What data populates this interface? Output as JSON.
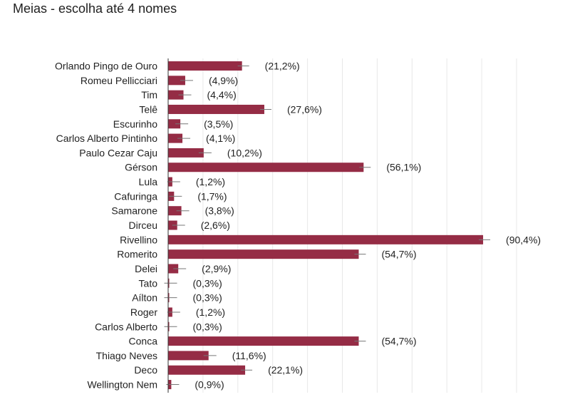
{
  "chart_data": {
    "type": "bar",
    "orientation": "horizontal",
    "title": "Meias - escolha até 4 nomes",
    "categories": [
      "Orlando Pingo de Ouro",
      "Romeu Pellicciari",
      "Tim",
      "Telê",
      "Escurinho",
      "Carlos Alberto Pintinho",
      "Paulo Cezar Caju",
      "Gérson",
      "Lula",
      "Cafuringa",
      "Samarone",
      "Dirceu",
      "Rivellino",
      "Romerito",
      "Delei",
      "Tato",
      "Aílton",
      "Roger",
      "Carlos Alberto",
      "Conca",
      "Thiago Neves",
      "Deco",
      "Wellington Nem"
    ],
    "values": [
      21.2,
      4.9,
      4.4,
      27.6,
      3.5,
      4.1,
      10.2,
      56.1,
      1.2,
      1.7,
      3.8,
      2.6,
      90.4,
      54.7,
      2.9,
      0.3,
      0.3,
      1.2,
      0.3,
      54.7,
      11.6,
      22.1,
      0.9
    ],
    "value_labels": [
      "(21,2%)",
      "(4,9%)",
      "(4,4%)",
      "(27,6%)",
      "(3,5%)",
      "(4,1%)",
      "(10,2%)",
      "(56,1%)",
      "(1,2%)",
      "(1,7%)",
      "(3,8%)",
      "(2,6%)",
      "(90,4%)",
      "(54,7%)",
      "(2,9%)",
      "(0,3%)",
      "(0,3%)",
      "(1,2%)",
      "(0,3%)",
      "(54,7%)",
      "(11,6%)",
      "(22,1%)",
      "(0,9%)"
    ],
    "xlim": [
      0,
      100
    ],
    "grid": true,
    "error_bars": true,
    "colors": {
      "bar": "#952c45",
      "grid": "#e8e8e8",
      "axis": "#333333",
      "error_bar": "#777777"
    }
  }
}
